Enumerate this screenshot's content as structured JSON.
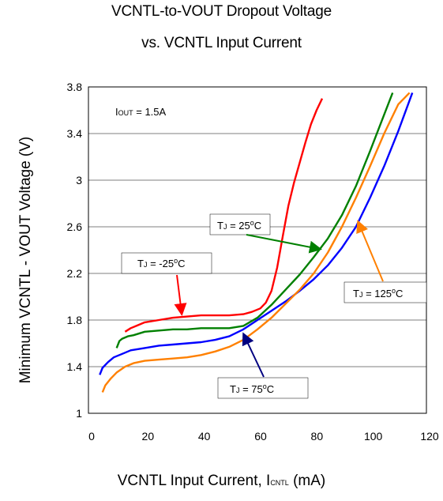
{
  "chart_data": {
    "type": "line",
    "title_line1": "VCNTL-to-VOUT Dropout Voltage",
    "title_line2": "vs. VCNTL Input Current",
    "ylabel": "Minimum VCNTL - VOUT Voltage (V)",
    "xlabel_main": "VCNTL Input Current, I",
    "xlabel_sub": "CNTL",
    "xlabel_unit": " (mA)",
    "xlim": [
      0,
      120
    ],
    "ylim": [
      1.0,
      3.8
    ],
    "x_ticks": [
      "0",
      "20",
      "40",
      "60",
      "80",
      "100",
      "120"
    ],
    "y_ticks": [
      "1",
      "1.4",
      "1.8",
      "2.2",
      "2.6",
      "3",
      "3.4",
      "3.8"
    ],
    "x_tick_values": [
      0,
      20,
      40,
      60,
      80,
      100,
      120
    ],
    "y_tick_values": [
      1.0,
      1.4,
      1.8,
      2.2,
      2.6,
      3.0,
      3.4,
      3.8
    ],
    "grid": "horizontal",
    "annotations": {
      "iout": {
        "prefix": "I",
        "sub": "OUT",
        "text": " = 1.5A"
      },
      "tj_m25": {
        "prefix": "T",
        "sub": "J",
        "text": " = -25",
        "sup": "o",
        "unit": "C"
      },
      "tj_25": {
        "prefix": "T",
        "sub": "J",
        "text": " = 25",
        "sup": "o",
        "unit": "C"
      },
      "tj_75": {
        "prefix": "T",
        "sub": "J",
        "text": " = 75",
        "sup": "o",
        "unit": "C"
      },
      "tj_125": {
        "prefix": "T",
        "sub": "J",
        "text": " = 125",
        "sup": "o",
        "unit": "C"
      }
    },
    "series": [
      {
        "color": "#ff0000",
        "x": [
          13,
          15,
          17,
          20,
          25,
          30,
          35,
          40,
          45,
          50,
          55,
          58,
          61,
          63,
          65,
          67,
          69,
          71,
          73,
          75,
          77,
          79,
          81,
          83
        ],
        "y": [
          1.7,
          1.73,
          1.75,
          1.78,
          1.8,
          1.82,
          1.83,
          1.84,
          1.84,
          1.84,
          1.85,
          1.87,
          1.9,
          1.95,
          2.05,
          2.25,
          2.52,
          2.78,
          2.98,
          3.15,
          3.32,
          3.48,
          3.6,
          3.7
        ]
      },
      {
        "color": "#008000",
        "x": [
          10,
          11,
          12,
          14,
          16,
          20,
          25,
          30,
          35,
          40,
          45,
          50,
          55,
          60,
          65,
          70,
          75,
          80,
          85,
          90,
          95,
          100,
          104,
          108
        ],
        "y": [
          1.56,
          1.62,
          1.64,
          1.66,
          1.67,
          1.7,
          1.71,
          1.72,
          1.72,
          1.73,
          1.73,
          1.73,
          1.75,
          1.82,
          1.93,
          2.06,
          2.19,
          2.34,
          2.5,
          2.7,
          2.95,
          3.25,
          3.5,
          3.75
        ]
      },
      {
        "color": "#0000ff",
        "x": [
          4,
          5,
          7,
          9,
          12,
          15,
          20,
          25,
          30,
          35,
          40,
          45,
          50,
          55,
          60,
          65,
          70,
          75,
          80,
          85,
          90,
          95,
          100,
          105,
          110,
          115
        ],
        "y": [
          1.33,
          1.39,
          1.44,
          1.48,
          1.51,
          1.54,
          1.56,
          1.58,
          1.59,
          1.6,
          1.61,
          1.63,
          1.66,
          1.72,
          1.8,
          1.88,
          1.96,
          2.05,
          2.15,
          2.27,
          2.42,
          2.6,
          2.85,
          3.12,
          3.42,
          3.75
        ]
      },
      {
        "color": "#ff8000",
        "x": [
          5,
          6,
          8,
          10,
          13,
          16,
          20,
          25,
          30,
          35,
          40,
          45,
          50,
          55,
          60,
          65,
          70,
          75,
          80,
          85,
          90,
          95,
          100,
          105,
          110,
          114
        ],
        "y": [
          1.18,
          1.24,
          1.3,
          1.35,
          1.4,
          1.43,
          1.45,
          1.46,
          1.47,
          1.48,
          1.5,
          1.53,
          1.57,
          1.63,
          1.72,
          1.82,
          1.94,
          2.06,
          2.2,
          2.38,
          2.6,
          2.85,
          3.12,
          3.4,
          3.65,
          3.75
        ]
      }
    ]
  }
}
